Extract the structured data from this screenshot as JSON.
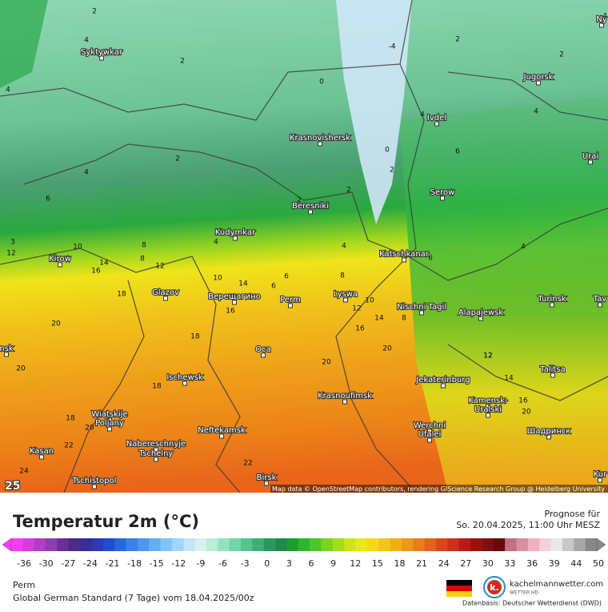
{
  "map": {
    "corner_value": 25,
    "attribution": "Map data © OpenStreetMap contributors, rendering GIScience Research Group @ Heidelberg University",
    "cities": [
      "Syktywkar",
      "Krasnovishersk",
      "Beresniki",
      "Kudymkar",
      "Kirow",
      "Katschkanar",
      "Serow",
      "Ivdel",
      "Jugorsk",
      "Urai",
      "Glazov",
      "Верещагино",
      "Perm",
      "Lyswa",
      "Nischni Tagil",
      "Alapajewsk",
      "Turinsk",
      "Tav",
      "Оса",
      "Ischewsk",
      "Jekaterinburg",
      "Talitsa",
      "Krasnoufimsk",
      "Kamensk-",
      "Uralski",
      "Wiatskije",
      "Poljany",
      "Neftekamsk",
      "Werchni",
      "Ufalei",
      "Шадринск",
      "Nabereschnyje",
      "Tschelny",
      "Kasan",
      "Tschistopol",
      "Birsk",
      "Ny",
      "Kur",
      "nsk"
    ],
    "contour_labels": [
      2,
      4,
      2,
      4,
      4,
      2,
      0,
      -4,
      2,
      4,
      4,
      4,
      2,
      0,
      2,
      2,
      6,
      2,
      4,
      4,
      6,
      4,
      6,
      10,
      14,
      16,
      8,
      12,
      10,
      14,
      6,
      6,
      8,
      12,
      10,
      14,
      16,
      18,
      20,
      20,
      18,
      20,
      16,
      20,
      18,
      16,
      12,
      14,
      18,
      20,
      22,
      24,
      20,
      22,
      12,
      8,
      8,
      3,
      12
    ]
  },
  "legend": {
    "title": "Temperatur 2m (°C)",
    "forecast_label": "Prognose für",
    "forecast_time": "So. 20.04.2025, 11:00 Uhr MESZ",
    "ticks": [
      -36,
      -30,
      -27,
      -24,
      -21,
      -18,
      -15,
      -12,
      -9,
      -6,
      -3,
      0,
      3,
      6,
      9,
      12,
      15,
      18,
      21,
      24,
      27,
      30,
      33,
      36,
      39,
      44,
      50
    ]
  },
  "footer": {
    "location": "Perm",
    "model": "Global German Standard (7 Tage) vom 18.04.2025/00z",
    "brand": "kachelmannwetter.com",
    "brand_sub": "WETTER HD",
    "source": "Datenbasis: Deutscher Wetterdienst (DWD)"
  }
}
